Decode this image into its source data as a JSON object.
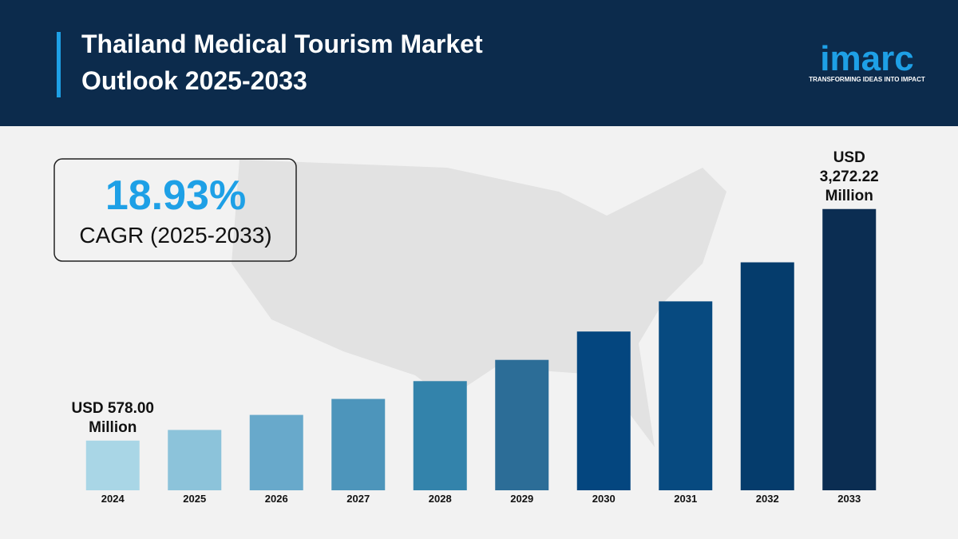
{
  "header": {
    "title": "Thailand Medical Tourism Market Outlook 2025-2033",
    "logo": "imarc",
    "tagline": "TRANSFORMING IDEAS INTO IMPACT"
  },
  "callout": {
    "value": "18.93%",
    "label": "CAGR (2025-2033)"
  },
  "chart_data": {
    "type": "bar",
    "categories": [
      "2024",
      "2025",
      "2026",
      "2027",
      "2028",
      "2029",
      "2030",
      "2031",
      "2032",
      "2033"
    ],
    "values": [
      578.0,
      702,
      877,
      1063,
      1270,
      1517,
      1847,
      2198,
      2652,
      3272.22
    ],
    "value_labels": [
      "USD 578.00 Million",
      null,
      null,
      null,
      null,
      null,
      null,
      null,
      null,
      "USD 3,272.22 Million"
    ],
    "colors": [
      "#a9d6e6",
      "#8cc3da",
      "#68a9cb",
      "#4d95bb",
      "#3383ab",
      "#2c6d97",
      "#04467f",
      "#074a80",
      "#053c6c",
      "#0b2d52"
    ],
    "ylim": [
      0,
      3400
    ]
  }
}
